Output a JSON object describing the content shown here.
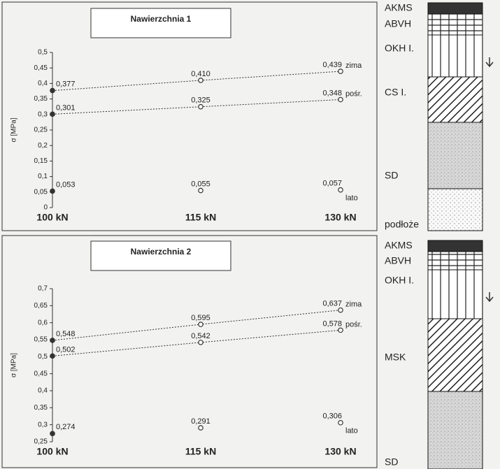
{
  "chart_data": [
    {
      "type": "line",
      "title": "Nawierzchnia 1",
      "ylabel": "σ [MPa]",
      "categories": [
        "100 kN",
        "115 kN",
        "130 kN"
      ],
      "series": [
        {
          "name": "zima",
          "color": "#333333",
          "line": true,
          "values": [
            0.377,
            0.41,
            0.439
          ],
          "value_labels": [
            "0,377",
            "0,410",
            "0,439"
          ]
        },
        {
          "name": "pośr.",
          "color": "#333333",
          "line": true,
          "values": [
            0.301,
            0.325,
            0.348
          ],
          "value_labels": [
            "0,301",
            "0,325",
            "0,348"
          ]
        },
        {
          "name": "lato",
          "color": "#333333",
          "line": false,
          "values": [
            0.053,
            0.055,
            0.057
          ],
          "value_labels": [
            "0,053",
            "0,055",
            "0,057"
          ]
        }
      ],
      "ylim": [
        0,
        0.5
      ],
      "yticks": [
        0,
        {
          "value": 0.05,
          "label": "0,05"
        },
        {
          "value": 0.1,
          "label": "0,1"
        },
        {
          "value": 0.15,
          "label": "0,15"
        },
        {
          "value": 0.2,
          "label": "0,2"
        },
        {
          "value": 0.25,
          "label": "0,25"
        },
        {
          "value": 0.3,
          "label": "0,3"
        },
        {
          "value": 0.35,
          "label": "0,35"
        },
        {
          "value": 0.4,
          "label": "0,4"
        },
        {
          "value": 0.45,
          "label": "0,45"
        },
        {
          "value": 0.5,
          "label": "0,5"
        }
      ]
    },
    {
      "type": "line",
      "title": "Nawierzchnia 2",
      "ylabel": "σ [MPa]",
      "categories": [
        "100 kN",
        "115 kN",
        "130 kN"
      ],
      "series": [
        {
          "name": "zima",
          "color": "#333333",
          "line": true,
          "values": [
            0.548,
            0.595,
            0.637
          ],
          "value_labels": [
            "0,548",
            "0,595",
            "0,637"
          ]
        },
        {
          "name": "pośr.",
          "color": "#333333",
          "line": true,
          "values": [
            0.502,
            0.542,
            0.578
          ],
          "value_labels": [
            "0,502",
            "0,542",
            "0,578"
          ]
        },
        {
          "name": "lato",
          "color": "#333333",
          "line": false,
          "values": [
            0.274,
            0.291,
            0.306
          ],
          "value_labels": [
            "0,274",
            "0,291",
            "0,306"
          ]
        }
      ],
      "ylim": [
        0.25,
        0.7
      ],
      "yticks": [
        {
          "value": 0.25,
          "label": "0,25"
        },
        {
          "value": 0.3,
          "label": "0,3"
        },
        {
          "value": 0.35,
          "label": "0,35"
        },
        {
          "value": 0.4,
          "label": "0,4"
        },
        {
          "value": 0.45,
          "label": "0,45"
        },
        {
          "value": 0.5,
          "label": "0,5"
        },
        {
          "value": 0.55,
          "label": "0,55"
        },
        {
          "value": 0.6,
          "label": "0,6"
        },
        {
          "value": 0.65,
          "label": "0,65"
        },
        {
          "value": 0.7,
          "label": "0,7"
        }
      ]
    }
  ],
  "layer_diagrams": [
    {
      "layers": [
        "AKMS",
        "ABVH",
        "OKH I.",
        "CS I.",
        "SD",
        "podłoże"
      ]
    },
    {
      "layers": [
        "AKMS",
        "ABVH",
        "OKH I.",
        "MSK",
        "SD"
      ]
    }
  ]
}
